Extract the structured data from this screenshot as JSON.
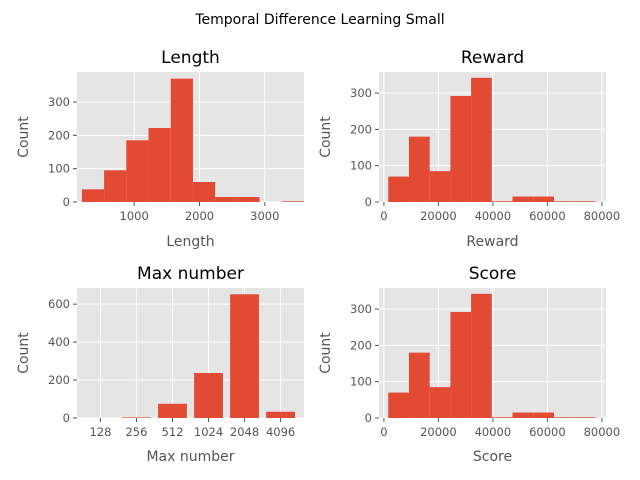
{
  "figure": {
    "title": "Temporal Difference Learning Small",
    "colors": {
      "bar": "#E24A33",
      "panel": "#E5E5E5",
      "grid": "#FFFFFF",
      "text": "#555555"
    }
  },
  "chart_data": [
    {
      "type": "bar",
      "title": "Length",
      "xlabel": "Length",
      "ylabel": "Count",
      "xlim": [
        125,
        3600
      ],
      "ylim": [
        0,
        390
      ],
      "xticks": [
        1000,
        2000,
        3000
      ],
      "yticks": [
        0,
        100,
        200,
        300
      ],
      "bins": [
        {
          "x0": 200,
          "x1": 540,
          "value": 38
        },
        {
          "x0": 540,
          "x1": 880,
          "value": 95
        },
        {
          "x0": 880,
          "x1": 1220,
          "value": 185
        },
        {
          "x0": 1220,
          "x1": 1560,
          "value": 222
        },
        {
          "x0": 1560,
          "x1": 1900,
          "value": 370
        },
        {
          "x0": 1900,
          "x1": 2240,
          "value": 60
        },
        {
          "x0": 2240,
          "x1": 2580,
          "value": 15
        },
        {
          "x0": 2580,
          "x1": 2920,
          "value": 15
        },
        {
          "x0": 2920,
          "x1": 3260,
          "value": 0
        },
        {
          "x0": 3260,
          "x1": 3600,
          "value": 2
        }
      ]
    },
    {
      "type": "bar",
      "title": "Reward",
      "xlabel": "Reward",
      "ylabel": "Count",
      "xlim": [
        -1800,
        81500
      ],
      "ylim": [
        0,
        358
      ],
      "xticks": [
        0,
        20000,
        40000,
        60000,
        80000
      ],
      "yticks": [
        0,
        100,
        200,
        300
      ],
      "bins": [
        {
          "x0": 1600,
          "x1": 9200,
          "value": 70
        },
        {
          "x0": 9200,
          "x1": 16800,
          "value": 180
        },
        {
          "x0": 16800,
          "x1": 24400,
          "value": 85
        },
        {
          "x0": 24400,
          "x1": 32000,
          "value": 292
        },
        {
          "x0": 32000,
          "x1": 39600,
          "value": 342
        },
        {
          "x0": 39600,
          "x1": 47200,
          "value": 2
        },
        {
          "x0": 47200,
          "x1": 54800,
          "value": 15
        },
        {
          "x0": 54800,
          "x1": 62400,
          "value": 15
        },
        {
          "x0": 62400,
          "x1": 70000,
          "value": 2
        },
        {
          "x0": 70000,
          "x1": 77600,
          "value": 2
        }
      ]
    },
    {
      "type": "bar",
      "title": "Max number",
      "xlabel": "Max number",
      "ylabel": "Count",
      "categories": [
        "128",
        "256",
        "512",
        "1024",
        "2048",
        "4096"
      ],
      "values": [
        0,
        3,
        75,
        237,
        652,
        33
      ],
      "ylim": [
        0,
        685
      ],
      "yticks": [
        0,
        200,
        400,
        600
      ]
    },
    {
      "type": "bar",
      "title": "Score",
      "xlabel": "Score",
      "ylabel": "Count",
      "xlim": [
        -1800,
        81500
      ],
      "ylim": [
        0,
        358
      ],
      "xticks": [
        0,
        20000,
        40000,
        60000,
        80000
      ],
      "yticks": [
        0,
        100,
        200,
        300
      ],
      "bins": [
        {
          "x0": 1600,
          "x1": 9200,
          "value": 70
        },
        {
          "x0": 9200,
          "x1": 16800,
          "value": 180
        },
        {
          "x0": 16800,
          "x1": 24400,
          "value": 85
        },
        {
          "x0": 24400,
          "x1": 32000,
          "value": 292
        },
        {
          "x0": 32000,
          "x1": 39600,
          "value": 342
        },
        {
          "x0": 39600,
          "x1": 47200,
          "value": 2
        },
        {
          "x0": 47200,
          "x1": 54800,
          "value": 15
        },
        {
          "x0": 54800,
          "x1": 62400,
          "value": 15
        },
        {
          "x0": 62400,
          "x1": 70000,
          "value": 2
        },
        {
          "x0": 70000,
          "x1": 77600,
          "value": 2
        }
      ]
    }
  ]
}
